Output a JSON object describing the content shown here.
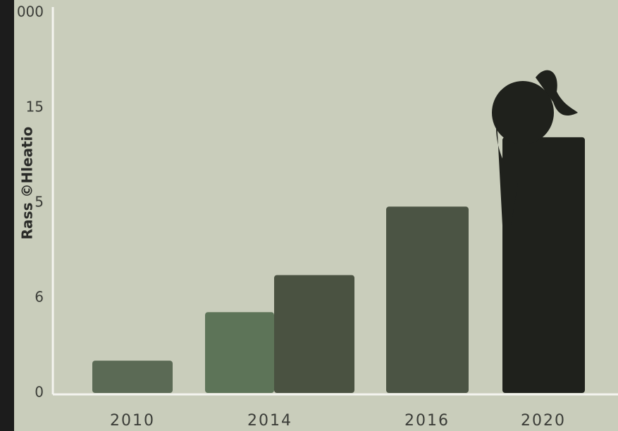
{
  "chart_data": {
    "type": "bar",
    "y_label": "Rass ©Hleatio",
    "categories": [
      "2010",
      "2014",
      null,
      "2016",
      "2020"
    ],
    "values": [
      0.34,
      0.85,
      1.24,
      1.96,
      2.69
    ],
    "colors": [
      "#5b6a55",
      "#5d7458",
      "#4a5241",
      "#4b5444",
      "#1f211c"
    ],
    "ylim": [
      0,
      4
    ],
    "yticks": [
      {
        "value": 0,
        "label": "0"
      },
      {
        "value": 1,
        "label": "6"
      },
      {
        "value": 2,
        "label": "5"
      },
      {
        "value": 3,
        "label": "15"
      },
      {
        "value": 4,
        "label": "000"
      }
    ]
  }
}
